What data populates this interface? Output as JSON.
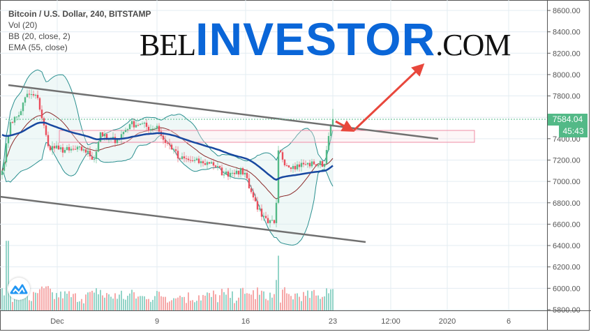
{
  "legend": {
    "title": "Bitcoin / U.S. Dollar, 240, BITSTAMP",
    "vol": "Vol (20)",
    "bb": "BB (20, close, 2)",
    "ema": "EMA (55, close)"
  },
  "watermark": {
    "bel": "BEL",
    "investor": "INVESTOR",
    "com": ".COM"
  },
  "last_price_label": "7584.04",
  "countdown_label": "45:43",
  "colors": {
    "up": "#53b987",
    "down": "#eb4d5c",
    "ema": "#1848a0",
    "bb_band": "#2a8f8f",
    "bb_basis": "#8b2b2b",
    "annotation": "#e8473c",
    "channel": "#707070",
    "logo_blue": "#0a66d8"
  },
  "icons": {
    "tradingview_logo": "tradingview-logo-icon"
  },
  "chart_data": {
    "type": "candlestick",
    "interval": "240",
    "ylim": [
      5800,
      8600
    ],
    "grid": true,
    "y_ticks": [
      "8600.00",
      "8400.00",
      "8200.00",
      "8000.00",
      "7800.00",
      "7600.00",
      "7400.00",
      "7200.00",
      "7000.00",
      "6800.00",
      "6600.00",
      "6400.00",
      "6200.00",
      "6000.00",
      "5800.00"
    ],
    "x_ticks": [
      "Dec",
      "9",
      "16",
      "23",
      "12:00",
      "2020",
      "6"
    ],
    "approx_closes": [
      {
        "t": "2019-11-26 16:00",
        "c": 7100
      },
      {
        "t": "2019-11-27 08:00",
        "c": 7555
      },
      {
        "t": "2019-11-28 00:00",
        "c": 7620
      },
      {
        "t": "2019-11-28 16:00",
        "c": 7820
      },
      {
        "t": "2019-11-29 12:00",
        "c": 7780
      },
      {
        "t": "2019-11-30 08:00",
        "c": 7330
      },
      {
        "t": "2019-12-01 04:00",
        "c": 7300
      },
      {
        "t": "2019-12-02 00:00",
        "c": 7290
      },
      {
        "t": "2019-12-03 04:00",
        "c": 7300
      },
      {
        "t": "2019-12-04 00:00",
        "c": 7210
      },
      {
        "t": "2019-12-04 12:00",
        "c": 7460
      },
      {
        "t": "2019-12-05 00:00",
        "c": 7390
      },
      {
        "t": "2019-12-05 20:00",
        "c": 7390
      },
      {
        "t": "2019-12-06 20:00",
        "c": 7535
      },
      {
        "t": "2019-12-07 16:00",
        "c": 7540
      },
      {
        "t": "2019-12-08 12:00",
        "c": 7490
      },
      {
        "t": "2019-12-09 00:00",
        "c": 7520
      },
      {
        "t": "2019-12-09 12:00",
        "c": 7390
      },
      {
        "t": "2019-12-10 08:00",
        "c": 7300
      },
      {
        "t": "2019-12-10 16:00",
        "c": 7215
      },
      {
        "t": "2019-12-11 12:00",
        "c": 7200
      },
      {
        "t": "2019-12-12 16:00",
        "c": 7170
      },
      {
        "t": "2019-12-13 08:00",
        "c": 7180
      },
      {
        "t": "2019-12-14 08:00",
        "c": 7065
      },
      {
        "t": "2019-12-14 20:00",
        "c": 7080
      },
      {
        "t": "2019-12-15 08:00",
        "c": 7100
      },
      {
        "t": "2019-12-16 00:00",
        "c": 7080
      },
      {
        "t": "2019-12-16 12:00",
        "c": 6900
      },
      {
        "t": "2019-12-17 08:00",
        "c": 6670
      },
      {
        "t": "2019-12-17 20:00",
        "c": 6610
      },
      {
        "t": "2019-12-18 08:00",
        "c": 6610
      },
      {
        "t": "2019-12-18 12:00",
        "c": 6800
      },
      {
        "t": "2019-12-18 16:00",
        "c": 7290
      },
      {
        "t": "2019-12-19 08:00",
        "c": 7150
      },
      {
        "t": "2019-12-19 20:00",
        "c": 7145
      },
      {
        "t": "2019-12-20 16:00",
        "c": 7160
      },
      {
        "t": "2019-12-21 12:00",
        "c": 7160
      },
      {
        "t": "2019-12-22 08:00",
        "c": 7165
      },
      {
        "t": "2019-12-22 16:00",
        "c": 7425
      },
      {
        "t": "2019-12-22 20:00",
        "c": 7520
      },
      {
        "t": "2019-12-23 00:00",
        "c": 7584.04
      }
    ],
    "last_price": 7584.04,
    "annotations": {
      "channel_upper": [
        {
          "t": "2019-11-27 04:00",
          "p": 7920
        },
        {
          "t": "2019-12-31 12:00",
          "p": 7415
        }
      ],
      "channel_lower": [
        {
          "t": "2019-11-26 12:00",
          "p": 6880
        },
        {
          "t": "2019-12-25 16:00",
          "p": 6445
        }
      ],
      "resistance_zone": [
        7400,
        7500
      ]
    }
  }
}
